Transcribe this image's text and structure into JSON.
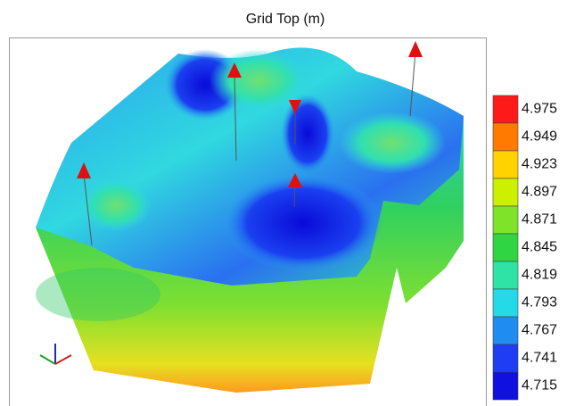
{
  "title": "Grid Top (m)",
  "colorbar": {
    "labels": [
      "4.975",
      "4.949",
      "4.923",
      "4.897",
      "4.871",
      "4.845",
      "4.819",
      "4.793",
      "4.767",
      "4.741",
      "4.715"
    ],
    "colors": [
      "#ff1a1a",
      "#ff7a00",
      "#ffd200",
      "#ccf000",
      "#7fe32a",
      "#2fd642",
      "#2fe3a6",
      "#24d9e8",
      "#1e8cf0",
      "#1f3df5",
      "#1010e0"
    ]
  }
}
